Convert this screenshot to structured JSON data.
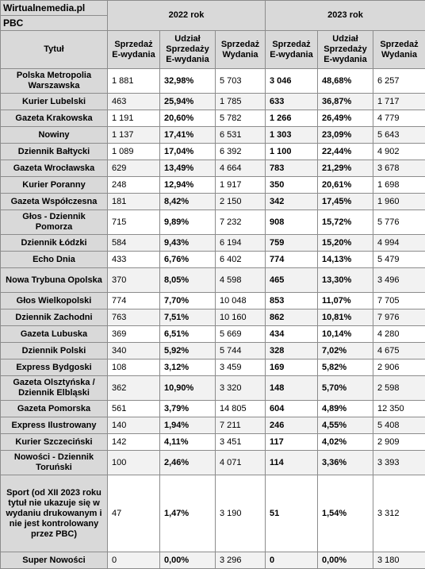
{
  "header": {
    "brand": "Wirtualnemedia.pl",
    "source": "PBC",
    "year1": "2022 rok",
    "year2": "2023 rok",
    "col_title": "Tytuł",
    "col_e": "Sprzedaż E-wydania",
    "col_share": "Udział Sprzedaży E-wydania",
    "col_print": "Sprzedaż Wydania"
  },
  "rows": [
    {
      "title": "Polska Metropolia Warszawska",
      "e22": "1 881",
      "share22": "32,98%",
      "print22": "5 703",
      "e23": "3 046",
      "share23": "48,68%",
      "print23": "6 257"
    },
    {
      "title": "Kurier Lubelski",
      "e22": "463",
      "share22": "25,94%",
      "print22": "1 785",
      "e23": "633",
      "share23": "36,87%",
      "print23": "1 717"
    },
    {
      "title": "Gazeta Krakowska",
      "e22": "1 191",
      "share22": "20,60%",
      "print22": "5 782",
      "e23": "1 266",
      "share23": "26,49%",
      "print23": "4 779"
    },
    {
      "title": "Nowiny",
      "e22": "1 137",
      "share22": "17,41%",
      "print22": "6 531",
      "e23": "1 303",
      "share23": "23,09%",
      "print23": "5 643"
    },
    {
      "title": "Dziennik Bałtycki",
      "e22": "1 089",
      "share22": "17,04%",
      "print22": "6 392",
      "e23": "1 100",
      "share23": "22,44%",
      "print23": "4 902"
    },
    {
      "title": "Gazeta Wrocławska",
      "e22": "629",
      "share22": "13,49%",
      "print22": "4 664",
      "e23": "783",
      "share23": "21,29%",
      "print23": "3 678"
    },
    {
      "title": "Kurier Poranny",
      "e22": "248",
      "share22": "12,94%",
      "print22": "1 917",
      "e23": "350",
      "share23": "20,61%",
      "print23": "1 698"
    },
    {
      "title": "Gazeta Współczesna",
      "e22": "181",
      "share22": "8,42%",
      "print22": "2 150",
      "e23": "342",
      "share23": "17,45%",
      "print23": "1 960"
    },
    {
      "title": "Głos - Dziennik Pomorza",
      "e22": "715",
      "share22": "9,89%",
      "print22": "7 232",
      "e23": "908",
      "share23": "15,72%",
      "print23": "5 776"
    },
    {
      "title": "Dziennik Łódzki",
      "e22": "584",
      "share22": "9,43%",
      "print22": "6 194",
      "e23": "759",
      "share23": "15,20%",
      "print23": "4 994"
    },
    {
      "title": "Echo Dnia",
      "e22": "433",
      "share22": "6,76%",
      "print22": "6 402",
      "e23": "774",
      "share23": "14,13%",
      "print23": "5 479"
    },
    {
      "title": "Nowa Trybuna Opolska",
      "e22": "370",
      "share22": "8,05%",
      "print22": "4 598",
      "e23": "465",
      "share23": "13,30%",
      "print23": "3 496"
    },
    {
      "title": "Głos Wielkopolski",
      "e22": "774",
      "share22": "7,70%",
      "print22": "10 048",
      "e23": "853",
      "share23": "11,07%",
      "print23": "7 705"
    },
    {
      "title": "Dziennik Zachodni",
      "e22": "763",
      "share22": "7,51%",
      "print22": "10 160",
      "e23": "862",
      "share23": "10,81%",
      "print23": "7 976"
    },
    {
      "title": "Gazeta Lubuska",
      "e22": "369",
      "share22": "6,51%",
      "print22": "5 669",
      "e23": "434",
      "share23": "10,14%",
      "print23": "4 280"
    },
    {
      "title": "Dziennik Polski",
      "e22": "340",
      "share22": "5,92%",
      "print22": "5 744",
      "e23": "328",
      "share23": "7,02%",
      "print23": "4 675"
    },
    {
      "title": "Express Bydgoski",
      "e22": "108",
      "share22": "3,12%",
      "print22": "3 459",
      "e23": "169",
      "share23": "5,82%",
      "print23": "2 906"
    },
    {
      "title": "Gazeta Olsztyńska / Dziennik Elbląski",
      "e22": "362",
      "share22": "10,90%",
      "print22": "3 320",
      "e23": "148",
      "share23": "5,70%",
      "print23": "2 598"
    },
    {
      "title": "Gazeta Pomorska",
      "e22": "561",
      "share22": "3,79%",
      "print22": "14 805",
      "e23": "604",
      "share23": "4,89%",
      "print23": "12 350"
    },
    {
      "title": "Express Ilustrowany",
      "e22": "140",
      "share22": "1,94%",
      "print22": "7 211",
      "e23": "246",
      "share23": "4,55%",
      "print23": "5 408"
    },
    {
      "title": "Kurier Szczeciński",
      "e22": "142",
      "share22": "4,11%",
      "print22": "3 451",
      "e23": "117",
      "share23": "4,02%",
      "print23": "2 909"
    },
    {
      "title": "Nowości - Dziennik Toruński",
      "e22": "100",
      "share22": "2,46%",
      "print22": "4 071",
      "e23": "114",
      "share23": "3,36%",
      "print23": "3 393"
    },
    {
      "title": "Sport (od XII 2023 roku tytuł nie ukazuje się w wydaniu drukowanym i nie jest kontrolowany przez PBC)",
      "e22": "47",
      "share22": "1,47%",
      "print22": "3 190",
      "e23": "51",
      "share23": "1,54%",
      "print23": "3 312"
    },
    {
      "title": "Super Nowości",
      "e22": "0",
      "share22": "0,00%",
      "print22": "3 296",
      "e23": "0",
      "share23": "0,00%",
      "print23": "3 180"
    }
  ]
}
